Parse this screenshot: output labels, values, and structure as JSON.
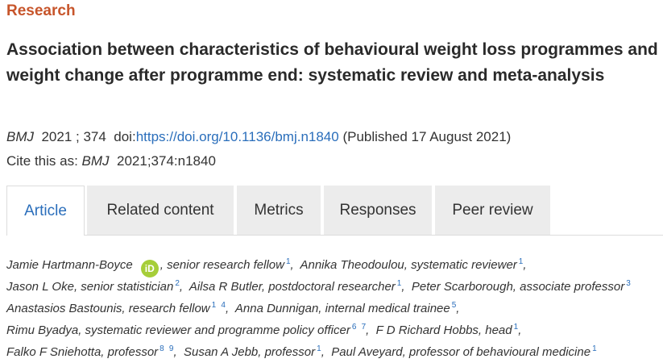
{
  "section_label": "Research",
  "title": "Association between characteristics of behavioural weight loss programmes and weight change after programme end: systematic review and meta-analysis",
  "citation": {
    "journal": "BMJ",
    "year_volume": "2021 ; 374",
    "doi_label": "doi:",
    "doi_url": "https://doi.org/10.1136/bmj.n1840",
    "published": "(Published 17 August 2021)",
    "cite_as_label": "Cite this as:",
    "cite_journal": "BMJ",
    "cite_ref": "2021;374:n1840"
  },
  "tabs": [
    "Article",
    "Related content",
    "Metrics",
    "Responses",
    "Peer review"
  ],
  "orcid_icon_text": "iD",
  "authors": {
    "a1_name": "Jamie Hartmann-Boyce",
    "a1_role": ", senior research fellow",
    "a1_sup": "1",
    "a2": "Annika Theodoulou, systematic reviewer",
    "a2_sup": "1",
    "a3": "Jason L Oke, senior statistician",
    "a3_sup": "2",
    "a4": "Ailsa R Butler, postdoctoral researcher",
    "a4_sup": "1",
    "a5": "Peter Scarborough, associate professor",
    "a5_sup": "3",
    "a6": "Anastasios Bastounis, research fellow",
    "a6_sup1": "1",
    "a6_sup2": "4",
    "a7": "Anna Dunnigan, internal medical trainee",
    "a7_sup": "5",
    "a8": "Rimu Byadya, systematic reviewer and programme policy officer",
    "a8_sup1": "6",
    "a8_sup2": "7",
    "a9": "F D Richard Hobbs, head",
    "a9_sup": "1",
    "a10": "Falko F Sniehotta, professor",
    "a10_sup1": "8",
    "a10_sup2": "9",
    "a11": "Susan A Jebb, professor",
    "a11_sup": "1",
    "a12": "Paul Aveyard, professor of behavioural medicine",
    "a12_sup": "1"
  }
}
